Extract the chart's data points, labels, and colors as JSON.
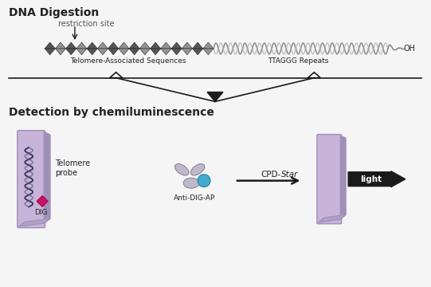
{
  "title_top": "DNA Digestion",
  "title_bottom": "Detection by chemiluminescence",
  "restriction_site_label": "restriction site",
  "telomere_assoc_label": "Telomere-Associated Sequences",
  "ttaggg_label": "TTAGGG Repeats",
  "oh_label": "OH",
  "telomere_probe_label": "Telomere\nprobe",
  "dig_label": "DIG",
  "anti_dig_label": "Anti-DIG-AP",
  "cpd_label": "CPD-",
  "star_label": "Star",
  "light_label": "light",
  "bg_color": "#f5f5f5",
  "arrow_color": "#1a1a1a",
  "membrane_color": "#c8b4d8",
  "membrane_edge_color": "#a090b8",
  "cyan_dot_color": "#44aacc",
  "ab_color": "#c0b8cc",
  "text_color": "#222222",
  "gray_text_color": "#555555",
  "dna_dark": "#444444",
  "dna_mid": "#888888",
  "dna_light": "#aaaaaa"
}
